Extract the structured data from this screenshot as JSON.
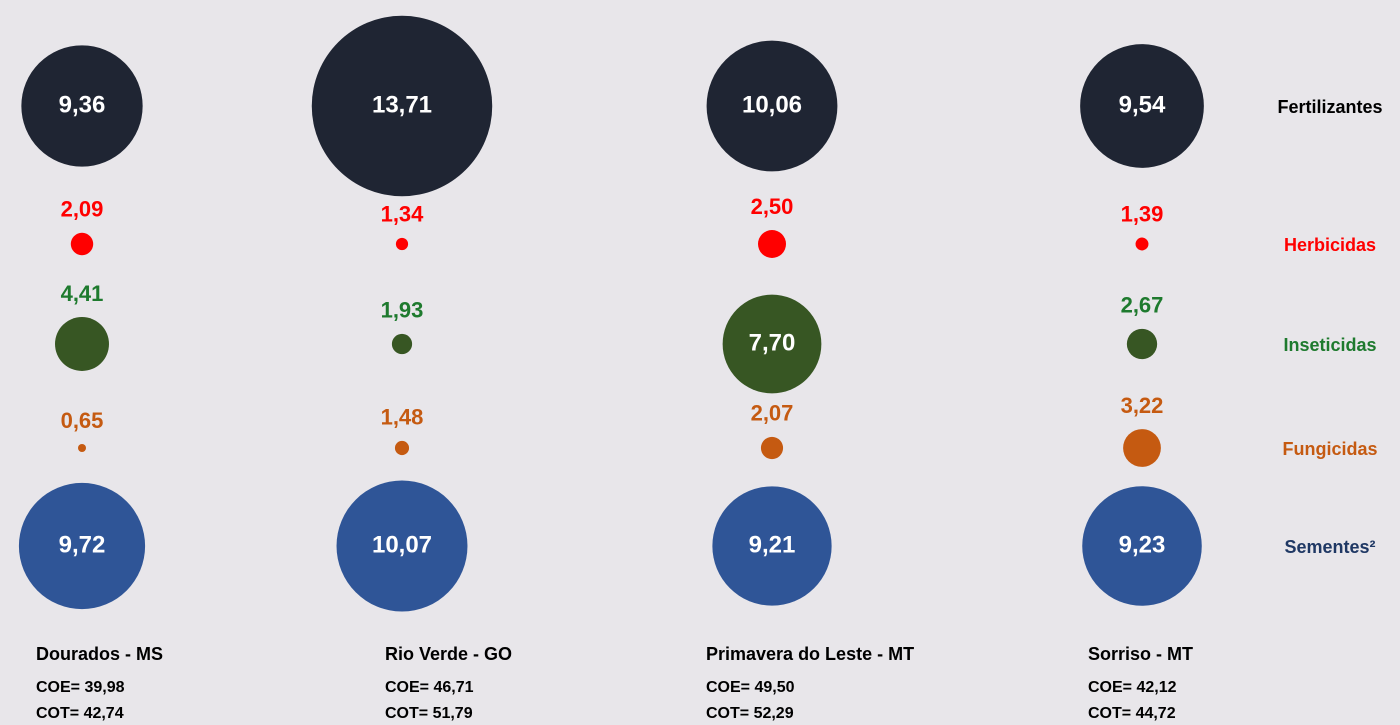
{
  "chart_data": {
    "type": "bubble",
    "categories": [
      "Dourados - MS",
      "Rio Verde - GO",
      "Primavera do Leste - MT",
      "Sorriso - MT"
    ],
    "coe_labels": [
      "COE= 39,98",
      "COE= 46,71",
      "COE= 49,50",
      "COE= 42,12"
    ],
    "cot_labels": [
      "COT= 42,74",
      "COT= 51,79",
      "COT= 52,29",
      "COT= 44,72"
    ],
    "series": [
      {
        "name": "Fertilizantes",
        "color": "#1f2533",
        "label_color": "#000000",
        "values": [
          9.36,
          13.71,
          10.06,
          9.54
        ],
        "value_labels": [
          "9,36",
          "13,71",
          "10,06",
          "9,54"
        ]
      },
      {
        "name": "Herbicidas",
        "color": "#ff0000",
        "label_color": "#ff0000",
        "values": [
          2.09,
          1.34,
          2.5,
          1.39
        ],
        "value_labels": [
          "2,09",
          "1,34",
          "2,50",
          "1,39"
        ]
      },
      {
        "name": "Inseticidas",
        "color": "#375623",
        "label_color": "#1e7a2e",
        "values": [
          4.41,
          1.93,
          7.7,
          2.67
        ],
        "value_labels": [
          "4,41",
          "1,93",
          "7,70",
          "2,67"
        ]
      },
      {
        "name": "Fungicidas",
        "color": "#c55a11",
        "label_color": "#c55a11",
        "values": [
          0.65,
          1.48,
          2.07,
          3.22
        ],
        "value_labels": [
          "0,65",
          "1,48",
          "2,07",
          "3,22"
        ]
      },
      {
        "name": "Sementes²",
        "color": "#2f5597",
        "label_color": "#1f3864",
        "values": [
          9.72,
          10.07,
          9.21,
          9.23
        ],
        "value_labels": [
          "9,72",
          "10,07",
          "9,21",
          "9,23"
        ]
      }
    ]
  }
}
